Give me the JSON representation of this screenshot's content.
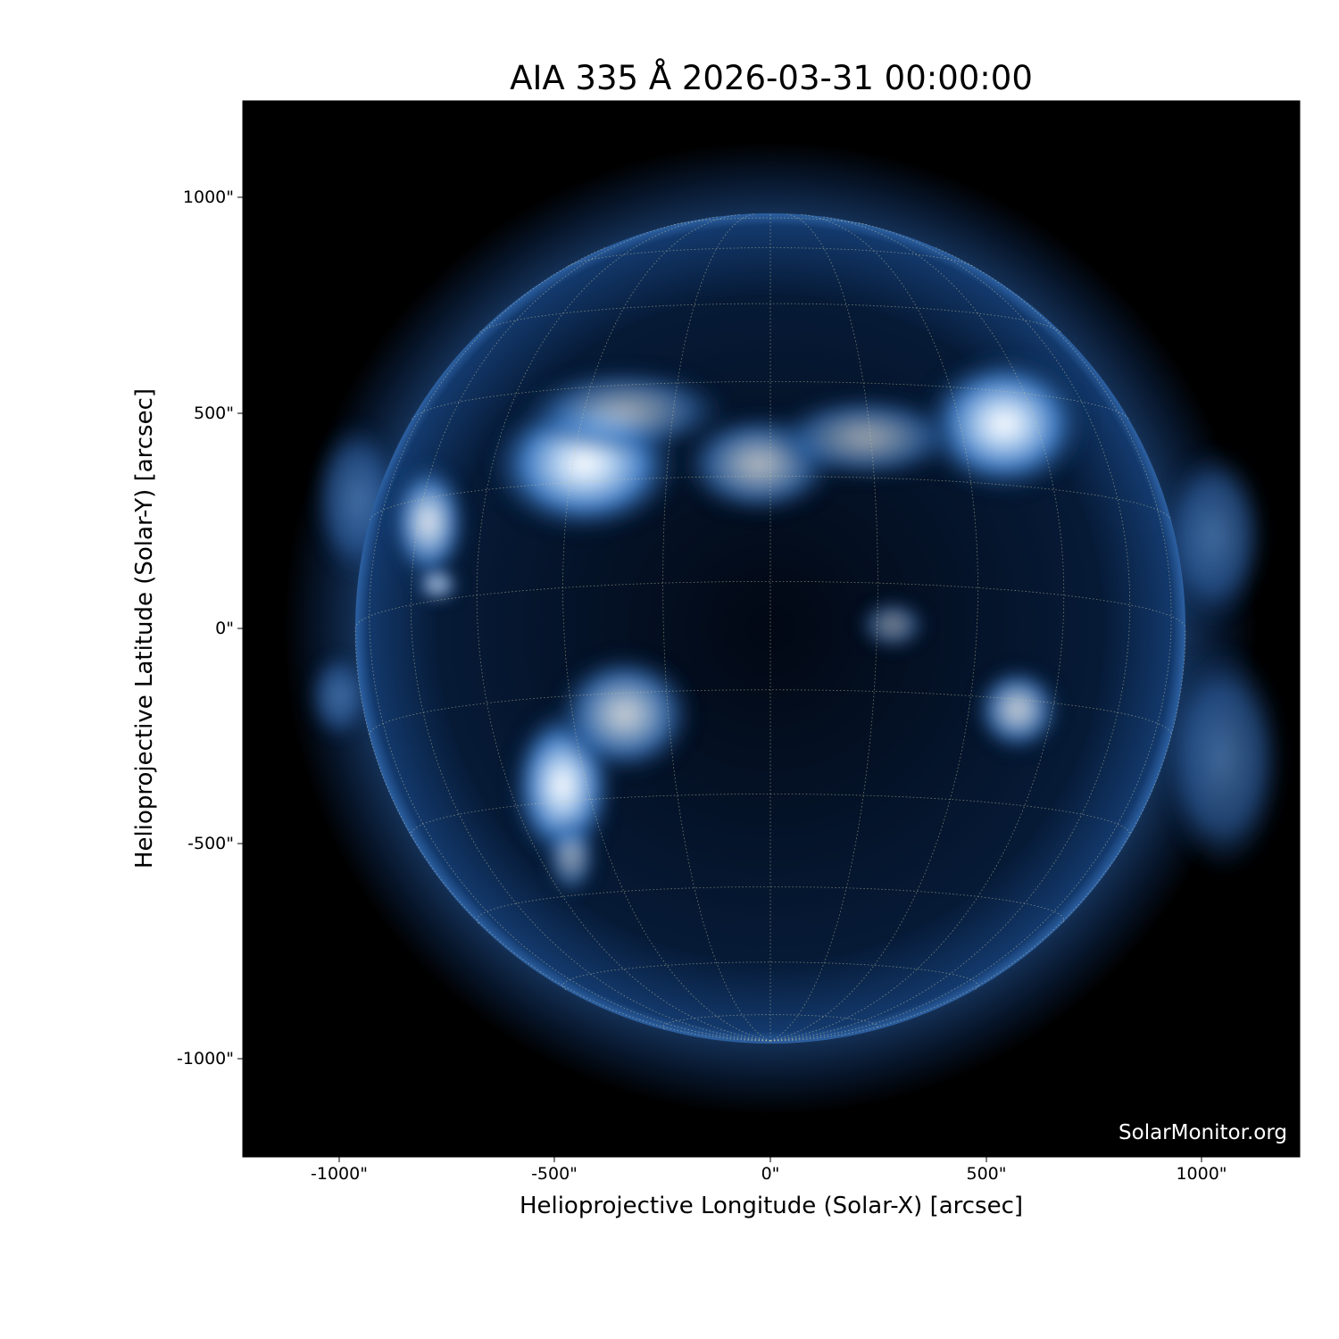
{
  "title": "AIA 335 Å 2026-03-31 00:00:00",
  "xlabel": "Helioprojective Longitude (Solar-X) [arcsec]",
  "ylabel": "Helioprojective Latitude (Solar-Y) [arcsec]",
  "x_ticks": [
    "-1000\"",
    "-500\"",
    "0\"",
    "500\"",
    "1000\""
  ],
  "y_ticks": [
    "1000\"",
    "500\"",
    "0\"",
    "-500\"",
    "-1000\""
  ],
  "watermark": "SolarMonitor.org",
  "colormap": {
    "background": "#000000",
    "disk": "#0a2a55",
    "bright": "#ffffff",
    "mid": "#3d7bc4"
  }
}
